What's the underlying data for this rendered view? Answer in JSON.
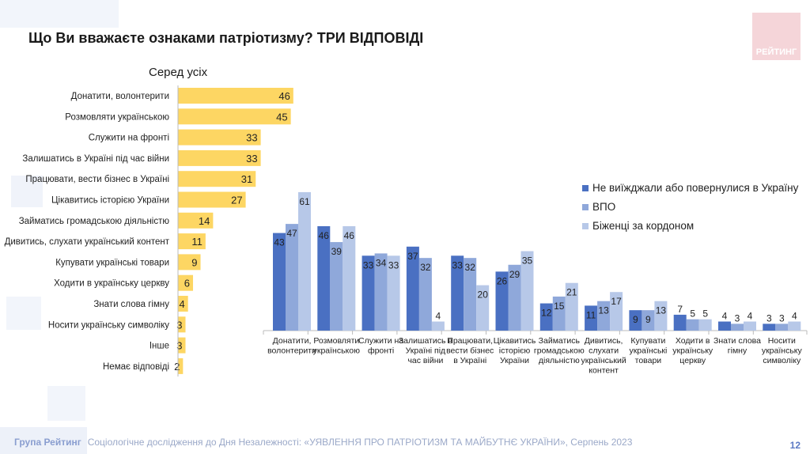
{
  "title": "Що Ви вважаєте ознаками патріотизму? ТРИ ВІДПОВІДІ",
  "logo_text": "РЕЙТИНГ",
  "footer": {
    "brand": "Група Рейтинг",
    "text": "Соціологічне дослідження до Дня Незалежності: «УЯВЛЕННЯ ПРО ПАТРІОТИЗМ ТА МАЙБУТНЄ УКРАЇНИ», Серпень 2023"
  },
  "page_number": "12",
  "colors": {
    "yellow": "#fdd663",
    "dark": "#4a70c2",
    "mid": "#8fa8da",
    "light": "#b7c8e8"
  },
  "chart_data": [
    {
      "type": "bar",
      "orientation": "horizontal",
      "title": "Серед усіх",
      "categories": [
        "Донатити, волонтерити",
        "Розмовляти українською",
        "Служити на фронті",
        "Залишатись в Україні під час війни",
        "Працювати, вести бізнес в Україні",
        "Цікавитись історією України",
        "Займатись громадською діяльністю",
        "Дивитись, слухати український контент",
        "Купувати українські товари",
        "Ходити в українську церкву",
        "Знати слова гімну",
        "Носити українську символіку",
        "Інше",
        "Немає відповіді"
      ],
      "values": [
        46,
        45,
        33,
        33,
        31,
        27,
        14,
        11,
        9,
        6,
        4,
        3,
        3,
        2
      ],
      "xlim": [
        0,
        50
      ],
      "grid": false
    },
    {
      "type": "bar",
      "orientation": "vertical",
      "categories": [
        "Донатити, волонтерити",
        "Розмовляти українською",
        "Служити на фронті",
        "Залишатись в Україні під час війни",
        "Працювати, вести бізнес в Україні",
        "Цікавитись історією України",
        "Займатись громадською діяльністю",
        "Дивитись, слухати український контент",
        "Купувати українські товари",
        "Ходити в українську церкву",
        "Знати слова гімну",
        "Носити українську символіку"
      ],
      "series": [
        {
          "name": "Не виїжджали або повернулися в Україну",
          "values": [
            43,
            46,
            33,
            37,
            33,
            26,
            12,
            11,
            9,
            7,
            4,
            3
          ]
        },
        {
          "name": "ВПО",
          "values": [
            47,
            39,
            34,
            32,
            32,
            29,
            15,
            13,
            9,
            5,
            3,
            3
          ]
        },
        {
          "name": "Біженці за кордоном",
          "values": [
            61,
            46,
            33,
            4,
            20,
            35,
            21,
            17,
            13,
            5,
            4,
            4
          ]
        }
      ],
      "ylim": [
        0,
        65
      ],
      "legend": "top-right",
      "grid": false
    }
  ]
}
